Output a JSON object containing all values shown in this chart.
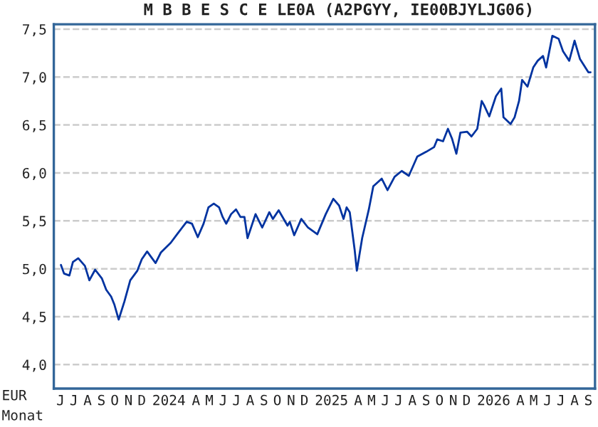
{
  "chart_data": {
    "type": "line",
    "title": "M B B E S C E LE0A (A2PGYY, IE00BJYLJG06)",
    "xlabel": "Monat",
    "ylabel": "EUR",
    "xlim": [
      "2023-06-01",
      "2026-10-01"
    ],
    "ylim": [
      3.75,
      7.55
    ],
    "yticks": [
      {
        "value": 4.0,
        "label": "4,0"
      },
      {
        "value": 4.5,
        "label": "4,5"
      },
      {
        "value": 5.0,
        "label": "5,0"
      },
      {
        "value": 5.5,
        "label": "5,5"
      },
      {
        "value": 6.0,
        "label": "6,0"
      },
      {
        "value": 6.5,
        "label": "6,5"
      },
      {
        "value": 7.0,
        "label": "7,0"
      },
      {
        "value": 7.5,
        "label": "7,5"
      }
    ],
    "xticks": [
      {
        "value": "2023-06-16",
        "label": "J"
      },
      {
        "value": "2023-07-16",
        "label": "J"
      },
      {
        "value": "2023-08-16",
        "label": "A"
      },
      {
        "value": "2023-09-16",
        "label": "S"
      },
      {
        "value": "2023-10-16",
        "label": "O"
      },
      {
        "value": "2023-11-16",
        "label": "N"
      },
      {
        "value": "2023-12-16",
        "label": "D"
      },
      {
        "value": "2024-02-15",
        "label": "2024"
      },
      {
        "value": "2024-04-16",
        "label": "A"
      },
      {
        "value": "2024-05-16",
        "label": "M"
      },
      {
        "value": "2024-06-16",
        "label": "J"
      },
      {
        "value": "2024-07-16",
        "label": "J"
      },
      {
        "value": "2024-08-16",
        "label": "A"
      },
      {
        "value": "2024-09-16",
        "label": "S"
      },
      {
        "value": "2024-10-16",
        "label": "O"
      },
      {
        "value": "2024-11-16",
        "label": "N"
      },
      {
        "value": "2024-12-16",
        "label": "D"
      },
      {
        "value": "2025-02-15",
        "label": "2025"
      },
      {
        "value": "2025-04-16",
        "label": "A"
      },
      {
        "value": "2025-05-16",
        "label": "M"
      },
      {
        "value": "2025-06-16",
        "label": "J"
      },
      {
        "value": "2025-07-16",
        "label": "J"
      },
      {
        "value": "2025-08-16",
        "label": "A"
      },
      {
        "value": "2025-09-16",
        "label": "S"
      },
      {
        "value": "2025-10-16",
        "label": "O"
      },
      {
        "value": "2025-11-16",
        "label": "N"
      },
      {
        "value": "2025-12-16",
        "label": "D"
      },
      {
        "value": "2026-02-15",
        "label": "2026"
      },
      {
        "value": "2026-04-16",
        "label": "A"
      },
      {
        "value": "2026-05-16",
        "label": "M"
      },
      {
        "value": "2026-06-16",
        "label": "J"
      },
      {
        "value": "2026-07-16",
        "label": "J"
      },
      {
        "value": "2026-08-16",
        "label": "A"
      },
      {
        "value": "2026-09-16",
        "label": "S"
      }
    ],
    "grid": "y",
    "line_style": "solid",
    "series": [
      {
        "color": "#0033a0",
        "x": [
          "2023-06-17",
          "2023-06-24",
          "2023-07-06",
          "2023-07-14",
          "2023-07-26",
          "2023-08-10",
          "2023-08-20",
          "2023-09-02",
          "2023-09-17",
          "2023-09-27",
          "2023-10-08",
          "2023-10-15",
          "2023-10-25",
          "2023-11-07",
          "2023-11-20",
          "2023-12-06",
          "2023-12-16",
          "2023-12-28",
          "2024-01-16",
          "2024-01-28",
          "2024-02-19",
          "2024-03-06",
          "2024-03-26",
          "2024-04-07",
          "2024-04-20",
          "2024-05-03",
          "2024-05-14",
          "2024-05-26",
          "2024-06-07",
          "2024-06-15",
          "2024-06-23",
          "2024-07-04",
          "2024-07-15",
          "2024-07-25",
          "2024-08-03",
          "2024-08-10",
          "2024-08-28",
          "2024-09-12",
          "2024-09-28",
          "2024-10-06",
          "2024-10-19",
          "2024-11-08",
          "2024-11-13",
          "2024-11-23",
          "2024-12-09",
          "2024-12-24",
          "2025-01-14",
          "2025-02-02",
          "2025-02-19",
          "2025-03-04",
          "2025-03-14",
          "2025-03-21",
          "2025-03-28",
          "2025-04-08",
          "2025-04-13",
          "2025-04-25",
          "2025-05-10",
          "2025-05-20",
          "2025-06-08",
          "2025-06-21",
          "2025-07-07",
          "2025-07-23",
          "2025-08-08",
          "2025-08-27",
          "2025-09-16",
          "2025-10-04",
          "2025-10-11",
          "2025-10-24",
          "2025-11-04",
          "2025-11-13",
          "2025-11-23",
          "2025-12-02",
          "2025-12-17",
          "2025-12-27",
          "2026-01-09",
          "2026-01-19",
          "2026-01-24",
          "2026-02-05",
          "2026-02-20",
          "2026-03-04",
          "2026-03-09",
          "2026-03-25",
          "2026-04-03",
          "2026-04-13",
          "2026-04-20",
          "2026-05-02",
          "2026-05-15",
          "2026-05-25",
          "2026-06-06",
          "2026-06-13",
          "2026-06-27",
          "2026-07-11",
          "2026-07-21",
          "2026-08-04",
          "2026-08-16",
          "2026-08-28",
          "2026-09-16",
          "2026-09-21"
        ],
        "values": [
          5.04,
          4.95,
          4.93,
          5.07,
          5.11,
          5.03,
          4.88,
          4.99,
          4.9,
          4.78,
          4.71,
          4.63,
          4.47,
          4.66,
          4.88,
          4.98,
          5.1,
          5.18,
          5.06,
          5.17,
          5.27,
          5.37,
          5.49,
          5.47,
          5.33,
          5.47,
          5.64,
          5.68,
          5.64,
          5.54,
          5.47,
          5.57,
          5.62,
          5.54,
          5.54,
          5.32,
          5.57,
          5.43,
          5.59,
          5.52,
          5.61,
          5.45,
          5.49,
          5.35,
          5.52,
          5.43,
          5.36,
          5.57,
          5.73,
          5.66,
          5.52,
          5.64,
          5.59,
          5.2,
          4.98,
          5.32,
          5.62,
          5.86,
          5.94,
          5.82,
          5.96,
          6.02,
          5.97,
          6.17,
          6.22,
          6.27,
          6.35,
          6.33,
          6.46,
          6.36,
          6.2,
          6.42,
          6.43,
          6.38,
          6.46,
          6.75,
          6.71,
          6.59,
          6.8,
          6.88,
          6.58,
          6.51,
          6.58,
          6.75,
          6.97,
          6.9,
          7.1,
          7.17,
          7.22,
          7.1,
          7.43,
          7.4,
          7.27,
          7.17,
          7.38,
          7.19,
          7.05,
          7.05
        ]
      }
    ]
  }
}
